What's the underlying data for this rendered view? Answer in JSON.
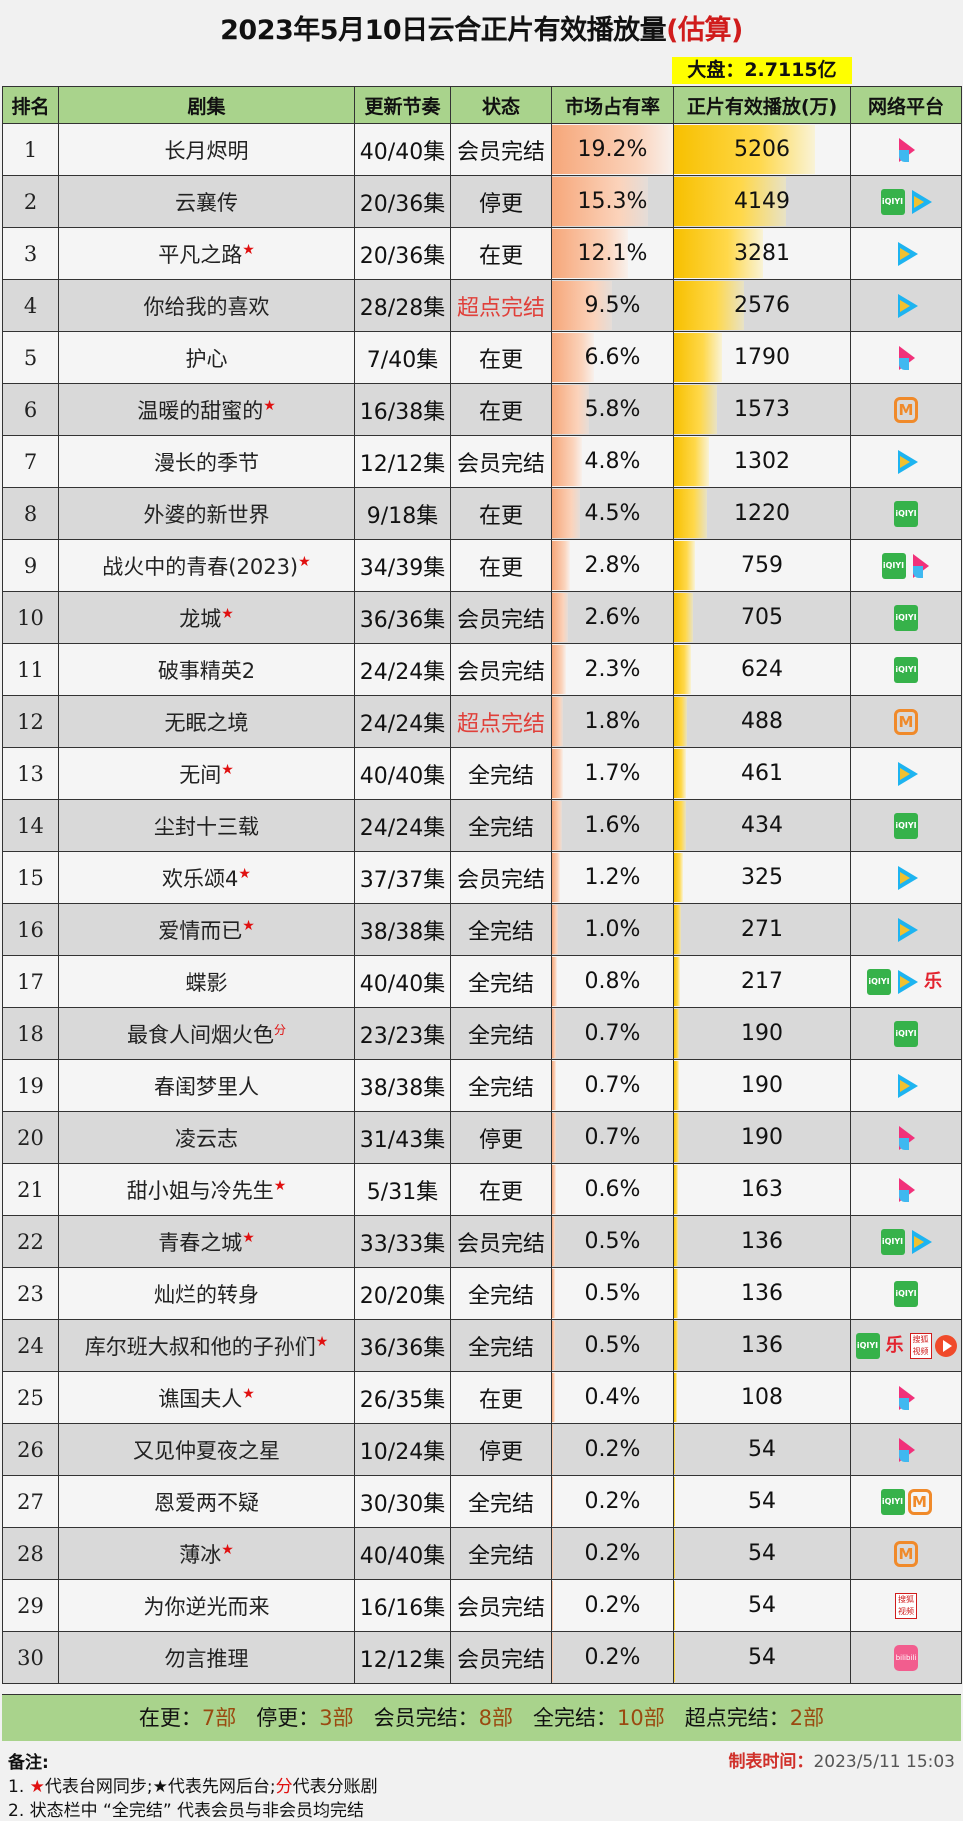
{
  "title": {
    "main": "2023年5月10日云合正片有效播放量",
    "estimate": "(估算)"
  },
  "dapan": "大盘：2.7115亿",
  "headers": [
    "排名",
    "剧集",
    "更新节奏",
    "状态",
    "市场占有率",
    "正片有效播放(万)",
    "网络平台"
  ],
  "colors": {
    "header_bg": "#a9d38c",
    "share_bar": "#f6a77a",
    "play_bar": "#f7c000",
    "highlight": "#ffff00",
    "red": "#e01010"
  },
  "rows": [
    {
      "rank": "1",
      "name": "长月烬明",
      "mark": "",
      "episodes": "40/40集",
      "status": "会员完结",
      "share": "19.2%",
      "plays": "5206",
      "platforms": [
        "youku"
      ]
    },
    {
      "rank": "2",
      "name": "云襄传",
      "mark": "",
      "episodes": "20/36集",
      "status": "停更",
      "share": "15.3%",
      "plays": "4149",
      "platforms": [
        "iqiyi",
        "tencent"
      ]
    },
    {
      "rank": "3",
      "name": "平凡之路",
      "mark": "★",
      "episodes": "20/36集",
      "status": "在更",
      "share": "12.1%",
      "plays": "3281",
      "platforms": [
        "tencent"
      ]
    },
    {
      "rank": "4",
      "name": "你给我的喜欢",
      "mark": "",
      "episodes": "28/28集",
      "status": "超点完结",
      "share": "9.5%",
      "plays": "2576",
      "platforms": [
        "tencent"
      ]
    },
    {
      "rank": "5",
      "name": "护心",
      "mark": "",
      "episodes": "7/40集",
      "status": "在更",
      "share": "6.6%",
      "plays": "1790",
      "platforms": [
        "youku"
      ]
    },
    {
      "rank": "6",
      "name": "温暖的甜蜜的",
      "mark": "★",
      "episodes": "16/38集",
      "status": "在更",
      "share": "5.8%",
      "plays": "1573",
      "platforms": [
        "mgtv"
      ]
    },
    {
      "rank": "7",
      "name": "漫长的季节",
      "mark": "",
      "episodes": "12/12集",
      "status": "会员完结",
      "share": "4.8%",
      "plays": "1302",
      "platforms": [
        "tencent"
      ]
    },
    {
      "rank": "8",
      "name": "外婆的新世界",
      "mark": "",
      "episodes": "9/18集",
      "status": "在更",
      "share": "4.5%",
      "plays": "1220",
      "platforms": [
        "iqiyi"
      ]
    },
    {
      "rank": "9",
      "name": "战火中的青春(2023)",
      "mark": "★",
      "episodes": "34/39集",
      "status": "在更",
      "share": "2.8%",
      "plays": "759",
      "platforms": [
        "iqiyi",
        "youku"
      ]
    },
    {
      "rank": "10",
      "name": "龙城",
      "mark": "★",
      "episodes": "36/36集",
      "status": "会员完结",
      "share": "2.6%",
      "plays": "705",
      "platforms": [
        "iqiyi"
      ]
    },
    {
      "rank": "11",
      "name": "破事精英2",
      "mark": "",
      "episodes": "24/24集",
      "status": "会员完结",
      "share": "2.3%",
      "plays": "624",
      "platforms": [
        "iqiyi"
      ]
    },
    {
      "rank": "12",
      "name": "无眠之境",
      "mark": "",
      "episodes": "24/24集",
      "status": "超点完结",
      "share": "1.8%",
      "plays": "488",
      "platforms": [
        "mgtv"
      ]
    },
    {
      "rank": "13",
      "name": "无间",
      "mark": "★",
      "episodes": "40/40集",
      "status": "全完结",
      "share": "1.7%",
      "plays": "461",
      "platforms": [
        "tencent"
      ]
    },
    {
      "rank": "14",
      "name": "尘封十三载",
      "mark": "",
      "episodes": "24/24集",
      "status": "全完结",
      "share": "1.6%",
      "plays": "434",
      "platforms": [
        "iqiyi"
      ]
    },
    {
      "rank": "15",
      "name": "欢乐颂4",
      "mark": "★",
      "episodes": "37/37集",
      "status": "会员完结",
      "share": "1.2%",
      "plays": "325",
      "platforms": [
        "tencent"
      ]
    },
    {
      "rank": "16",
      "name": "爱情而已",
      "mark": "★",
      "episodes": "38/38集",
      "status": "全完结",
      "share": "1.0%",
      "plays": "271",
      "platforms": [
        "tencent"
      ]
    },
    {
      "rank": "17",
      "name": "蝶影",
      "mark": "",
      "episodes": "40/40集",
      "status": "全完结",
      "share": "0.8%",
      "plays": "217",
      "platforms": [
        "iqiyi",
        "tencent",
        "le"
      ]
    },
    {
      "rank": "18",
      "name": "最食人间烟火色",
      "mark": "分",
      "episodes": "23/23集",
      "status": "全完结",
      "share": "0.7%",
      "plays": "190",
      "platforms": [
        "iqiyi"
      ]
    },
    {
      "rank": "19",
      "name": "春闺梦里人",
      "mark": "",
      "episodes": "38/38集",
      "status": "全完结",
      "share": "0.7%",
      "plays": "190",
      "platforms": [
        "tencent"
      ]
    },
    {
      "rank": "20",
      "name": "凌云志",
      "mark": "",
      "episodes": "31/43集",
      "status": "停更",
      "share": "0.7%",
      "plays": "190",
      "platforms": [
        "youku"
      ]
    },
    {
      "rank": "21",
      "name": "甜小姐与冷先生",
      "mark": "★",
      "episodes": "5/31集",
      "status": "在更",
      "share": "0.6%",
      "plays": "163",
      "platforms": [
        "youku"
      ]
    },
    {
      "rank": "22",
      "name": "青春之城",
      "mark": "★",
      "episodes": "33/33集",
      "status": "会员完结",
      "share": "0.5%",
      "plays": "136",
      "platforms": [
        "iqiyi",
        "tencent"
      ]
    },
    {
      "rank": "23",
      "name": "灿烂的转身",
      "mark": "",
      "episodes": "20/20集",
      "status": "全完结",
      "share": "0.5%",
      "plays": "136",
      "platforms": [
        "iqiyi"
      ]
    },
    {
      "rank": "24",
      "name": "库尔班大叔和他的子孙们",
      "mark": "★",
      "episodes": "36/36集",
      "status": "全完结",
      "share": "0.5%",
      "plays": "136",
      "platforms": [
        "iqiyi",
        "le",
        "sohu",
        "redplay"
      ]
    },
    {
      "rank": "25",
      "name": "谯国夫人",
      "mark": "★",
      "episodes": "26/35集",
      "status": "在更",
      "share": "0.4%",
      "plays": "108",
      "platforms": [
        "youku"
      ]
    },
    {
      "rank": "26",
      "name": "又见仲夏夜之星",
      "mark": "",
      "episodes": "10/24集",
      "status": "停更",
      "share": "0.2%",
      "plays": "54",
      "platforms": [
        "youku"
      ]
    },
    {
      "rank": "27",
      "name": "恩爱两不疑",
      "mark": "",
      "episodes": "30/30集",
      "status": "全完结",
      "share": "0.2%",
      "plays": "54",
      "platforms": [
        "iqiyi",
        "mgtv"
      ]
    },
    {
      "rank": "28",
      "name": "薄冰",
      "mark": "★",
      "episodes": "40/40集",
      "status": "全完结",
      "share": "0.2%",
      "plays": "54",
      "platforms": [
        "mgtv"
      ]
    },
    {
      "rank": "29",
      "name": "为你逆光而来",
      "mark": "",
      "episodes": "16/16集",
      "status": "会员完结",
      "share": "0.2%",
      "plays": "54",
      "platforms": [
        "sohu"
      ]
    },
    {
      "rank": "30",
      "name": "勿言推理",
      "mark": "",
      "episodes": "12/12集",
      "status": "会员完结",
      "share": "0.2%",
      "plays": "54",
      "platforms": [
        "bili"
      ]
    }
  ],
  "platform_labels": {
    "iqiyi": "iQIYI",
    "mgtv": "M",
    "le": "乐",
    "sohu": "搜狐视频",
    "bili": "bilibili"
  },
  "summary": [
    {
      "label": "在更：",
      "count": "7部"
    },
    {
      "label": "停更：",
      "count": "3部"
    },
    {
      "label": "会员完结：",
      "count": "8部"
    },
    {
      "label": "全完结：",
      "count": "10部"
    },
    {
      "label": "超点完结：",
      "count": "2部"
    }
  ],
  "notes": {
    "title": "备注:",
    "line1": {
      "prefix": "1. ",
      "red_star": "★",
      "a": "代表台网同步;",
      "black_star": "★",
      "b": "代表先网后台;",
      "fen": "分",
      "c": "代表分账剧"
    },
    "line2": "2. 状态栏中 “全完结” 代表会员与非会员均完结"
  },
  "made_time": {
    "label": "制表时间：",
    "value": "2023/5/11 15:03"
  }
}
